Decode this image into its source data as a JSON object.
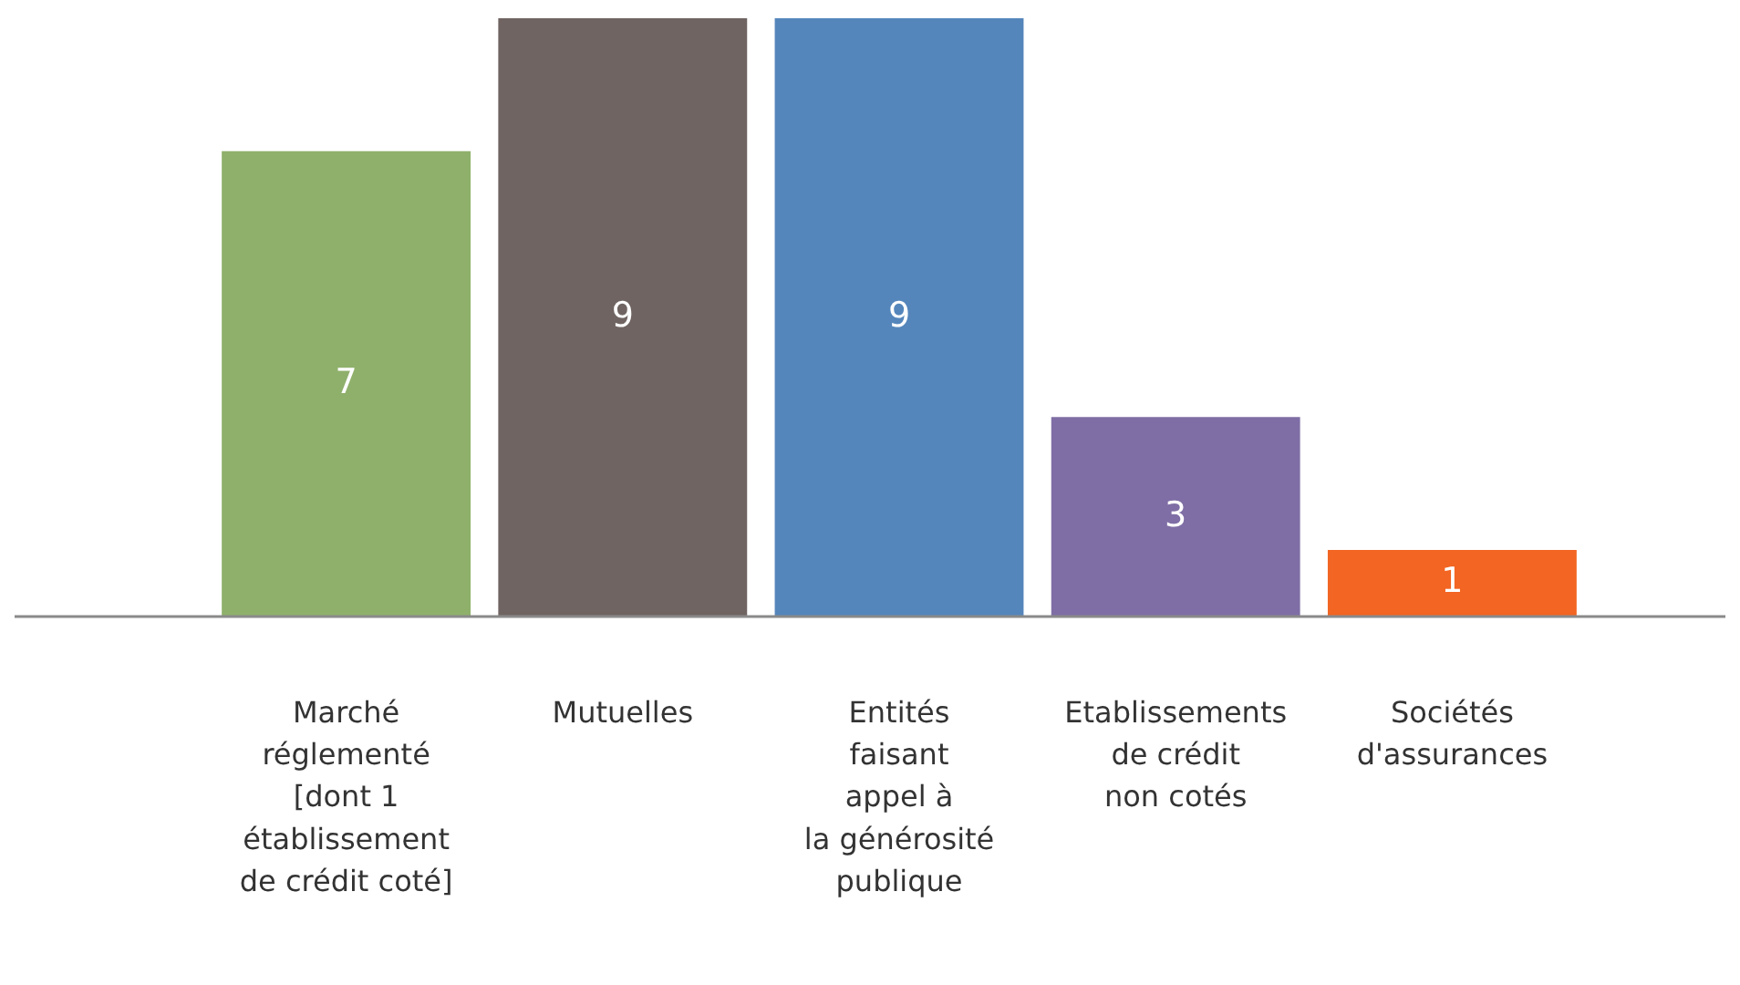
{
  "chart_data": {
    "type": "bar",
    "categories": [
      "Marché\nréglementé\n[dont 1\nétablissement\nde crédit coté]",
      "Mutuelles",
      "Entités\nfaisant\nappel à\nla générosité\npublique",
      "Etablissements\nde crédit\nnon cotés",
      "Sociétés\nd'assurances"
    ],
    "values": [
      7,
      9,
      9,
      3,
      1
    ],
    "colors": [
      "#8fb06b",
      "#6f6461",
      "#5586bb",
      "#7f6ea5",
      "#f26522"
    ],
    "data_labels": true,
    "grid": false,
    "legend": false
  }
}
